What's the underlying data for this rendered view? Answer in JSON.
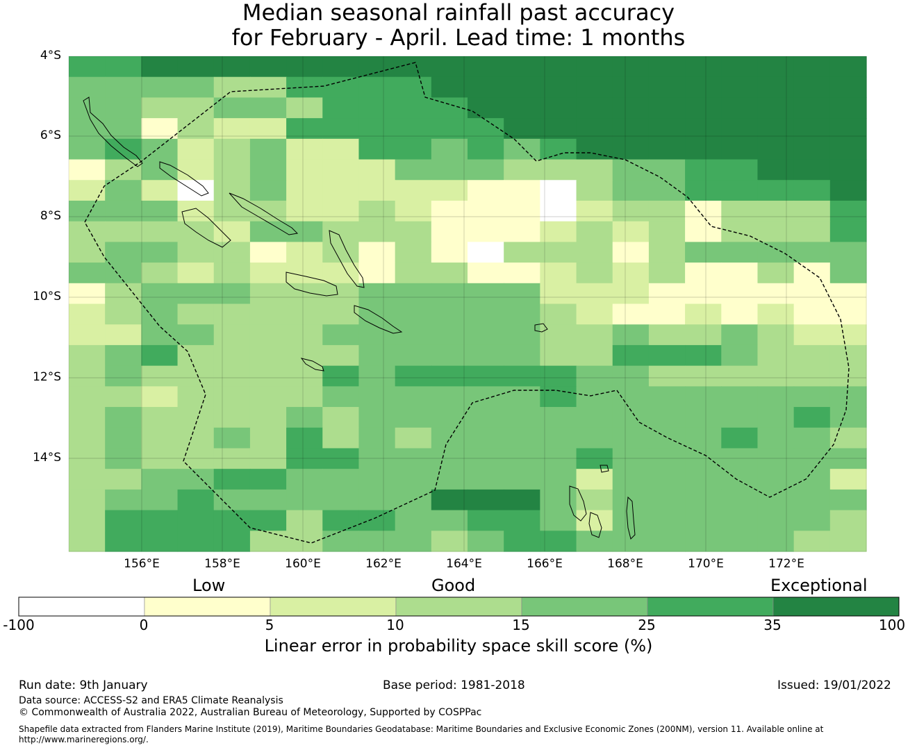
{
  "title_line1": "Median seasonal rainfall past accuracy",
  "title_line2": "for February - April. Lead time: 1 months",
  "lat_labels": [
    "4°S",
    "6°S",
    "8°S",
    "10°S",
    "12°S",
    "14°S"
  ],
  "lon_labels": [
    "156°E",
    "158°E",
    "160°E",
    "162°E",
    "164°E",
    "166°E",
    "168°E",
    "170°E",
    "172°E"
  ],
  "map_extent": {
    "lon_min": 154.2,
    "lon_max": 174.0,
    "lat_north": -4.0,
    "lat_south": -16.3
  },
  "skill_colors": [
    "#ffffff",
    "#ffffcc",
    "#d9f0a3",
    "#addd8e",
    "#78c679",
    "#41ab5d",
    "#238443"
  ],
  "skill_grid": [
    "5566666666666666666666",
    "4444335555666666666666",
    "4433443555566666666666",
    "4413225555556666666666",
    "4542342255454566666666",
    "1342342224443334455666",
    "2420342222211034455556",
    "4442332232111023313335",
    "3333244333111232313335",
    "3443312313103331344444",
    "4432322213311232311314",
    "1344433344444222111111",
    "2343333344444321121211",
    "2244333444444334334322",
    "3453333344444335554333",
    "3433333545555544333333",
    "3323333444444544444444",
    "3433334344444444444454",
    "3433435343444444445443",
    "3433335544444454444444",
    "3344554444444424444442",
    "3445444444666434444444",
    "3555553554455424444443",
    "3555533444345544444433"
  ],
  "colorbar": {
    "categories": [
      "Low",
      "Good",
      "Exceptional"
    ],
    "ticks": [
      "-100",
      "0",
      "5",
      "10",
      "15",
      "25",
      "35",
      "100"
    ],
    "label": "Linear error in probability space skill score (%)"
  },
  "footer": {
    "run_date": "Run date: 9th January",
    "base_period": "Base period: 1981-2018",
    "issued": "Issued: 19/01/2022",
    "data_source": "Data source: ACCESS-S2 and ERA5 Climate Reanalysis",
    "copyright": "© Commonwealth of Australia 2022, Australian Bureau of Meteorology, Supported by COSPPac",
    "shapefile_line1": "Shapefile data extracted from Flanders Marine Institute (2019), Maritime Boundaries Geodatabase: Maritime Boundaries and Exclusive Economic Zones (200NM), version 11. Available online at",
    "shapefile_line2": "http://www.marineregions.org/."
  }
}
